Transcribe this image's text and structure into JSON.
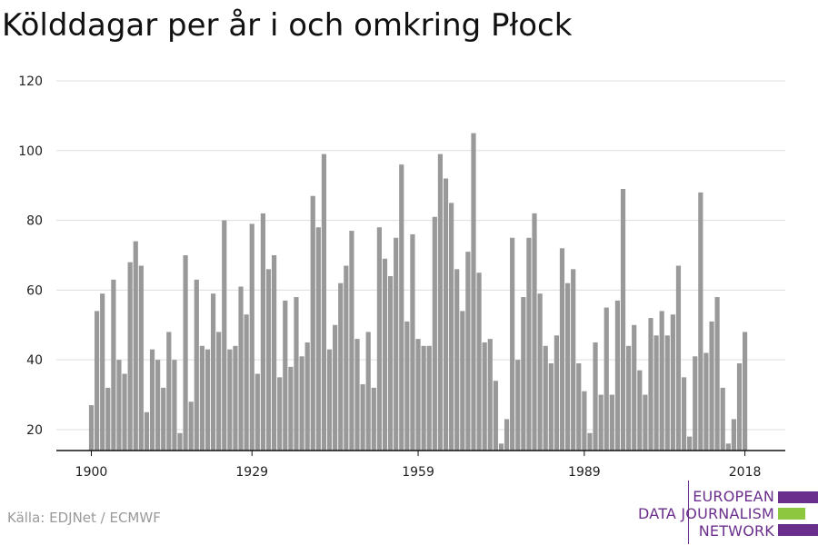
{
  "header": {
    "title": "Kölddagar per år i och omkring Płock"
  },
  "footer": {
    "source": "Källa: EDJNet / ECMWF"
  },
  "logo": {
    "line1": "EUROPEAN",
    "line2": "DATA JOURNALISM",
    "line3": "NETWORK",
    "colors": {
      "purple": "#6a2e8c",
      "green": "#8dc63f"
    }
  },
  "chart_data": {
    "type": "bar",
    "title": "Kölddagar per år i och omkring Płock",
    "xlabel": "",
    "ylabel": "",
    "ylim": [
      14,
      120
    ],
    "yticks": [
      20,
      40,
      60,
      80,
      100,
      120
    ],
    "xticks": [
      "1900",
      "1929",
      "1959",
      "1989",
      "2018"
    ],
    "grid": true,
    "bar_color": "#999999",
    "x": [
      1900,
      1901,
      1902,
      1903,
      1904,
      1905,
      1906,
      1907,
      1908,
      1909,
      1910,
      1911,
      1912,
      1913,
      1914,
      1915,
      1916,
      1917,
      1918,
      1919,
      1920,
      1921,
      1922,
      1923,
      1924,
      1925,
      1926,
      1927,
      1928,
      1929,
      1930,
      1931,
      1932,
      1933,
      1934,
      1935,
      1936,
      1937,
      1938,
      1939,
      1940,
      1941,
      1942,
      1943,
      1944,
      1945,
      1946,
      1947,
      1948,
      1949,
      1950,
      1951,
      1952,
      1953,
      1954,
      1955,
      1956,
      1957,
      1958,
      1959,
      1960,
      1961,
      1962,
      1963,
      1964,
      1965,
      1966,
      1967,
      1968,
      1969,
      1970,
      1971,
      1972,
      1973,
      1974,
      1975,
      1976,
      1977,
      1978,
      1979,
      1980,
      1981,
      1982,
      1983,
      1984,
      1985,
      1986,
      1987,
      1988,
      1989,
      1990,
      1991,
      1992,
      1993,
      1994,
      1995,
      1996,
      1997,
      1998,
      1999,
      2000,
      2001,
      2002,
      2003,
      2004,
      2005,
      2006,
      2007,
      2008,
      2009,
      2010,
      2011,
      2012,
      2013,
      2014,
      2015,
      2016,
      2017,
      2018
    ],
    "values": [
      27,
      54,
      59,
      32,
      63,
      40,
      36,
      68,
      74,
      67,
      25,
      43,
      40,
      32,
      48,
      40,
      19,
      70,
      28,
      63,
      44,
      43,
      59,
      48,
      80,
      43,
      44,
      61,
      53,
      79,
      36,
      82,
      66,
      70,
      35,
      57,
      38,
      58,
      41,
      45,
      87,
      78,
      99,
      43,
      50,
      62,
      67,
      77,
      46,
      33,
      48,
      32,
      78,
      69,
      64,
      75,
      96,
      51,
      76,
      46,
      44,
      44,
      81,
      99,
      92,
      85,
      66,
      54,
      71,
      105,
      65,
      45,
      46,
      34,
      16,
      23,
      75,
      40,
      58,
      75,
      82,
      59,
      44,
      39,
      47,
      72,
      62,
      66,
      39,
      31,
      19,
      45,
      30,
      55,
      30,
      57,
      89,
      44,
      50,
      37,
      30,
      52,
      47,
      54,
      47,
      53,
      67,
      35,
      18,
      41,
      88,
      42,
      51,
      58,
      32,
      16,
      23,
      39,
      48
    ]
  }
}
